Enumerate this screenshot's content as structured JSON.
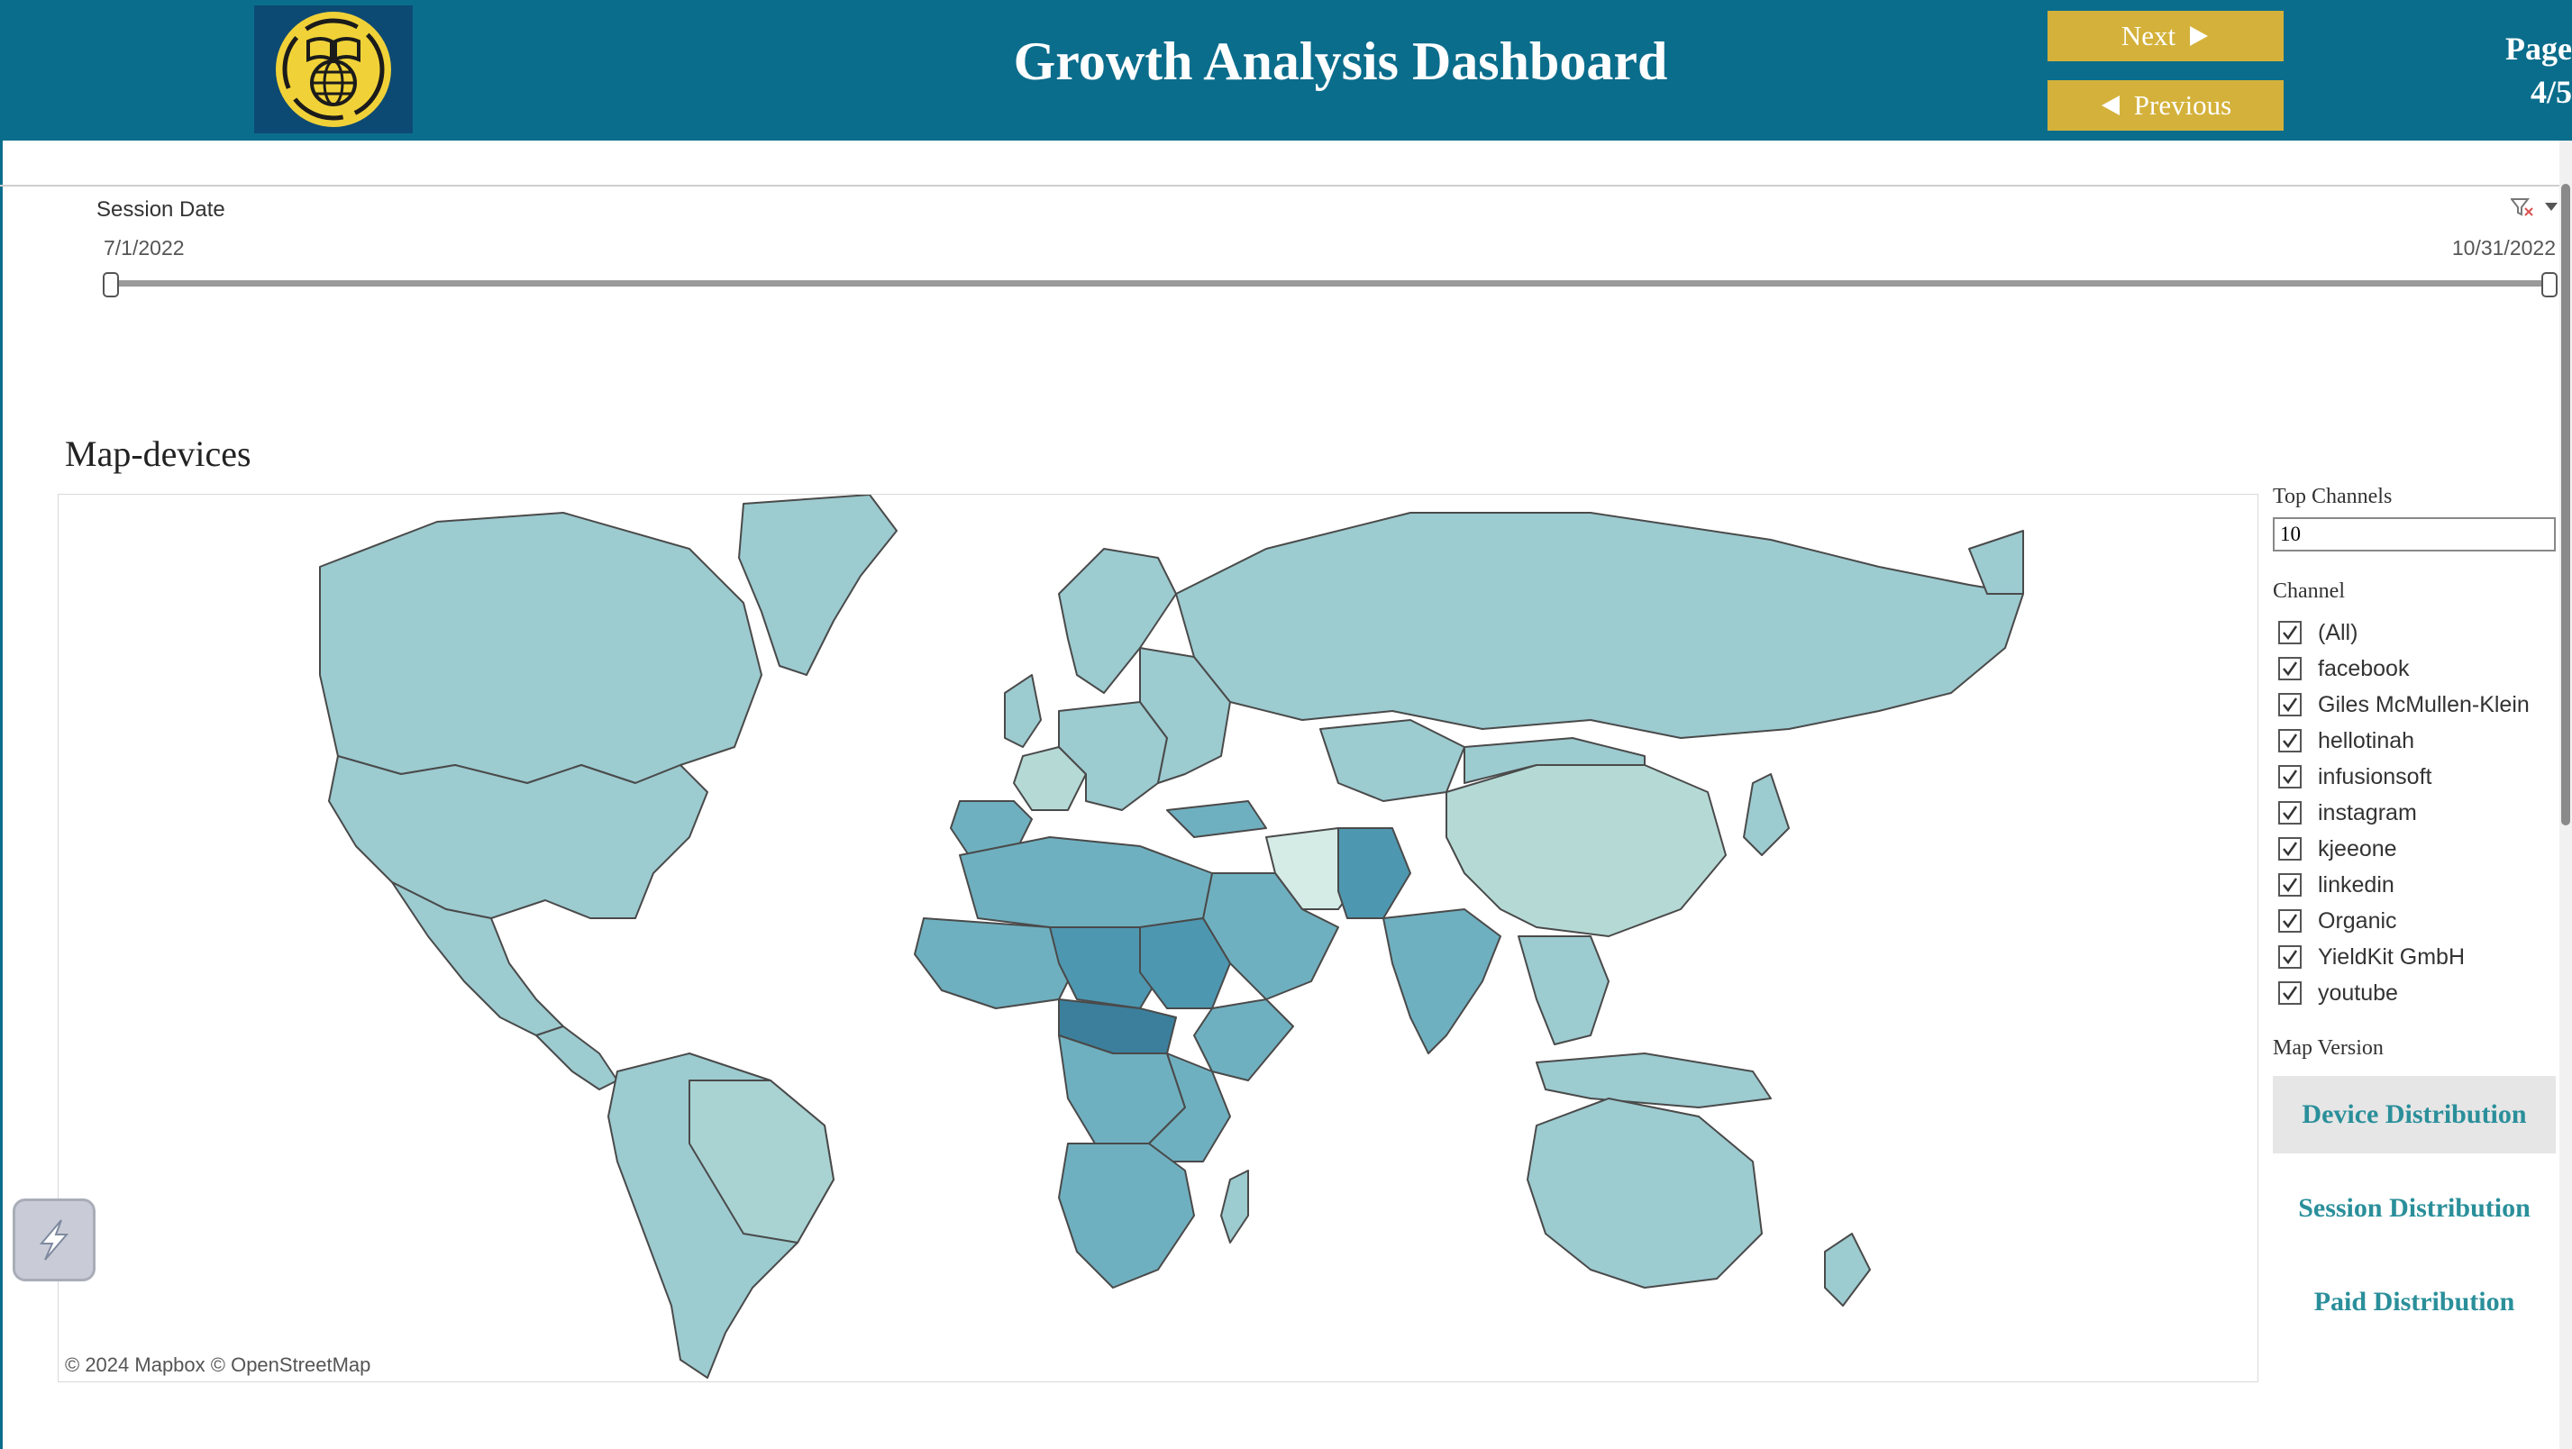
{
  "header": {
    "title": "Growth Analysis Dashboard",
    "next_label": "Next",
    "previous_label": "Previous",
    "page_label": "Page",
    "page_number": "4/5"
  },
  "date_filter": {
    "label": "Session Date",
    "start": "7/1/2022",
    "end": "10/31/2022"
  },
  "map": {
    "title": "Map-devices",
    "attribution": "© 2024 Mapbox  © OpenStreetMap"
  },
  "right_panel": {
    "top_channels_label": "Top Channels",
    "top_channels_value": "10",
    "channel_label": "Channel",
    "channels": [
      {
        "label": "(All)",
        "checked": true
      },
      {
        "label": "facebook",
        "checked": true
      },
      {
        "label": "Giles McMullen-Klein",
        "checked": true
      },
      {
        "label": "hellotinah",
        "checked": true
      },
      {
        "label": "infusionsoft",
        "checked": true
      },
      {
        "label": "instagram",
        "checked": true
      },
      {
        "label": "kjeeone",
        "checked": true
      },
      {
        "label": "linkedin",
        "checked": true
      },
      {
        "label": "Organic",
        "checked": true
      },
      {
        "label": "YieldKit GmbH",
        "checked": true
      },
      {
        "label": "youtube",
        "checked": true
      }
    ],
    "map_version_label": "Map Version",
    "versions": [
      {
        "label": "Device Distribution",
        "selected": true
      },
      {
        "label": "Session Distribution",
        "selected": false
      },
      {
        "label": "Paid Distribution",
        "selected": false
      }
    ]
  },
  "colors": {
    "header_bg": "#0b6d8c",
    "button_bg": "#d4b13a",
    "map_light": "#b5dad6",
    "map_base": "#9ccbd0",
    "map_mid": "#6fb0c0",
    "map_dark": "#4e97b0",
    "map_darkest": "#3b7f9c",
    "accent_text": "#2a8f9a"
  },
  "icons": {
    "logo": "book-globe-icon",
    "next": "triangle-right-icon",
    "previous": "triangle-left-icon",
    "filter": "clear-filter-icon",
    "dropdown": "chevron-down-icon",
    "floating": "lightning-icon"
  }
}
